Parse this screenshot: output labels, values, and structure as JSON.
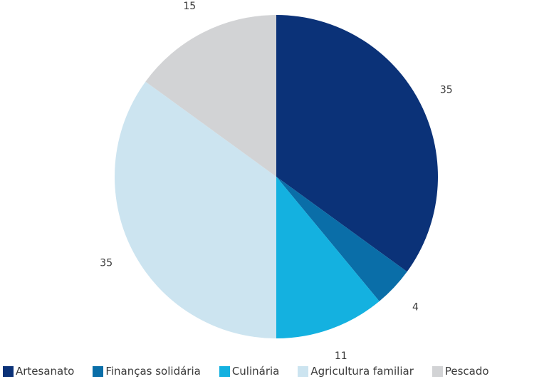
{
  "chart_data": {
    "type": "pie",
    "title": "",
    "start_angle_deg": 0,
    "direction": "clockwise",
    "slices": [
      {
        "name": "Artesanato",
        "value": 35,
        "label": "35",
        "color": "#0b3278"
      },
      {
        "name": "Finanças solidária",
        "value": 4,
        "label": "4",
        "color": "#0a6ea8"
      },
      {
        "name": "Culinária",
        "value": 11,
        "label": "11",
        "color": "#14b1e0"
      },
      {
        "name": "Agricultura familiar",
        "value": 35,
        "label": "35",
        "color": "#cce4f0"
      },
      {
        "name": "Pescado",
        "value": 15,
        "label": "15",
        "color": "#d2d3d5"
      }
    ],
    "legend_position": "bottom"
  }
}
